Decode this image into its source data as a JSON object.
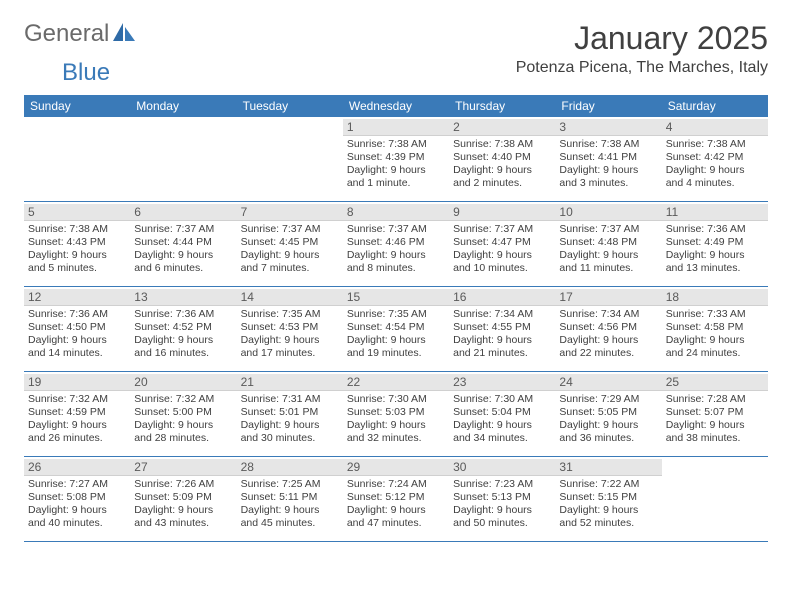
{
  "logo": {
    "part1": "General",
    "part2": "Blue"
  },
  "title": "January 2025",
  "location": "Potenza Picena, The Marches, Italy",
  "colors": {
    "header_bg": "#3a7ab8",
    "header_text": "#ffffff",
    "daynum_bg": "#e6e6e6",
    "daynum_text": "#5a5a5a",
    "body_text": "#404040",
    "row_border": "#3a7ab8",
    "logo_gray": "#6a6a6a",
    "logo_blue": "#3a7ab8",
    "background": "#ffffff"
  },
  "fonts": {
    "month_title_pt": 32,
    "location_pt": 16,
    "dow_pt": 12,
    "daynum_pt": 12,
    "daytext_pt": 10.5
  },
  "days_of_week": [
    "Sunday",
    "Monday",
    "Tuesday",
    "Wednesday",
    "Thursday",
    "Friday",
    "Saturday"
  ],
  "weeks": [
    [
      {
        "n": "",
        "sr": "",
        "ss": "",
        "d1": "",
        "d2": ""
      },
      {
        "n": "",
        "sr": "",
        "ss": "",
        "d1": "",
        "d2": ""
      },
      {
        "n": "",
        "sr": "",
        "ss": "",
        "d1": "",
        "d2": ""
      },
      {
        "n": "1",
        "sr": "Sunrise: 7:38 AM",
        "ss": "Sunset: 4:39 PM",
        "d1": "Daylight: 9 hours",
        "d2": "and 1 minute."
      },
      {
        "n": "2",
        "sr": "Sunrise: 7:38 AM",
        "ss": "Sunset: 4:40 PM",
        "d1": "Daylight: 9 hours",
        "d2": "and 2 minutes."
      },
      {
        "n": "3",
        "sr": "Sunrise: 7:38 AM",
        "ss": "Sunset: 4:41 PM",
        "d1": "Daylight: 9 hours",
        "d2": "and 3 minutes."
      },
      {
        "n": "4",
        "sr": "Sunrise: 7:38 AM",
        "ss": "Sunset: 4:42 PM",
        "d1": "Daylight: 9 hours",
        "d2": "and 4 minutes."
      }
    ],
    [
      {
        "n": "5",
        "sr": "Sunrise: 7:38 AM",
        "ss": "Sunset: 4:43 PM",
        "d1": "Daylight: 9 hours",
        "d2": "and 5 minutes."
      },
      {
        "n": "6",
        "sr": "Sunrise: 7:37 AM",
        "ss": "Sunset: 4:44 PM",
        "d1": "Daylight: 9 hours",
        "d2": "and 6 minutes."
      },
      {
        "n": "7",
        "sr": "Sunrise: 7:37 AM",
        "ss": "Sunset: 4:45 PM",
        "d1": "Daylight: 9 hours",
        "d2": "and 7 minutes."
      },
      {
        "n": "8",
        "sr": "Sunrise: 7:37 AM",
        "ss": "Sunset: 4:46 PM",
        "d1": "Daylight: 9 hours",
        "d2": "and 8 minutes."
      },
      {
        "n": "9",
        "sr": "Sunrise: 7:37 AM",
        "ss": "Sunset: 4:47 PM",
        "d1": "Daylight: 9 hours",
        "d2": "and 10 minutes."
      },
      {
        "n": "10",
        "sr": "Sunrise: 7:37 AM",
        "ss": "Sunset: 4:48 PM",
        "d1": "Daylight: 9 hours",
        "d2": "and 11 minutes."
      },
      {
        "n": "11",
        "sr": "Sunrise: 7:36 AM",
        "ss": "Sunset: 4:49 PM",
        "d1": "Daylight: 9 hours",
        "d2": "and 13 minutes."
      }
    ],
    [
      {
        "n": "12",
        "sr": "Sunrise: 7:36 AM",
        "ss": "Sunset: 4:50 PM",
        "d1": "Daylight: 9 hours",
        "d2": "and 14 minutes."
      },
      {
        "n": "13",
        "sr": "Sunrise: 7:36 AM",
        "ss": "Sunset: 4:52 PM",
        "d1": "Daylight: 9 hours",
        "d2": "and 16 minutes."
      },
      {
        "n": "14",
        "sr": "Sunrise: 7:35 AM",
        "ss": "Sunset: 4:53 PM",
        "d1": "Daylight: 9 hours",
        "d2": "and 17 minutes."
      },
      {
        "n": "15",
        "sr": "Sunrise: 7:35 AM",
        "ss": "Sunset: 4:54 PM",
        "d1": "Daylight: 9 hours",
        "d2": "and 19 minutes."
      },
      {
        "n": "16",
        "sr": "Sunrise: 7:34 AM",
        "ss": "Sunset: 4:55 PM",
        "d1": "Daylight: 9 hours",
        "d2": "and 21 minutes."
      },
      {
        "n": "17",
        "sr": "Sunrise: 7:34 AM",
        "ss": "Sunset: 4:56 PM",
        "d1": "Daylight: 9 hours",
        "d2": "and 22 minutes."
      },
      {
        "n": "18",
        "sr": "Sunrise: 7:33 AM",
        "ss": "Sunset: 4:58 PM",
        "d1": "Daylight: 9 hours",
        "d2": "and 24 minutes."
      }
    ],
    [
      {
        "n": "19",
        "sr": "Sunrise: 7:32 AM",
        "ss": "Sunset: 4:59 PM",
        "d1": "Daylight: 9 hours",
        "d2": "and 26 minutes."
      },
      {
        "n": "20",
        "sr": "Sunrise: 7:32 AM",
        "ss": "Sunset: 5:00 PM",
        "d1": "Daylight: 9 hours",
        "d2": "and 28 minutes."
      },
      {
        "n": "21",
        "sr": "Sunrise: 7:31 AM",
        "ss": "Sunset: 5:01 PM",
        "d1": "Daylight: 9 hours",
        "d2": "and 30 minutes."
      },
      {
        "n": "22",
        "sr": "Sunrise: 7:30 AM",
        "ss": "Sunset: 5:03 PM",
        "d1": "Daylight: 9 hours",
        "d2": "and 32 minutes."
      },
      {
        "n": "23",
        "sr": "Sunrise: 7:30 AM",
        "ss": "Sunset: 5:04 PM",
        "d1": "Daylight: 9 hours",
        "d2": "and 34 minutes."
      },
      {
        "n": "24",
        "sr": "Sunrise: 7:29 AM",
        "ss": "Sunset: 5:05 PM",
        "d1": "Daylight: 9 hours",
        "d2": "and 36 minutes."
      },
      {
        "n": "25",
        "sr": "Sunrise: 7:28 AM",
        "ss": "Sunset: 5:07 PM",
        "d1": "Daylight: 9 hours",
        "d2": "and 38 minutes."
      }
    ],
    [
      {
        "n": "26",
        "sr": "Sunrise: 7:27 AM",
        "ss": "Sunset: 5:08 PM",
        "d1": "Daylight: 9 hours",
        "d2": "and 40 minutes."
      },
      {
        "n": "27",
        "sr": "Sunrise: 7:26 AM",
        "ss": "Sunset: 5:09 PM",
        "d1": "Daylight: 9 hours",
        "d2": "and 43 minutes."
      },
      {
        "n": "28",
        "sr": "Sunrise: 7:25 AM",
        "ss": "Sunset: 5:11 PM",
        "d1": "Daylight: 9 hours",
        "d2": "and 45 minutes."
      },
      {
        "n": "29",
        "sr": "Sunrise: 7:24 AM",
        "ss": "Sunset: 5:12 PM",
        "d1": "Daylight: 9 hours",
        "d2": "and 47 minutes."
      },
      {
        "n": "30",
        "sr": "Sunrise: 7:23 AM",
        "ss": "Sunset: 5:13 PM",
        "d1": "Daylight: 9 hours",
        "d2": "and 50 minutes."
      },
      {
        "n": "31",
        "sr": "Sunrise: 7:22 AM",
        "ss": "Sunset: 5:15 PM",
        "d1": "Daylight: 9 hours",
        "d2": "and 52 minutes."
      },
      {
        "n": "",
        "sr": "",
        "ss": "",
        "d1": "",
        "d2": ""
      }
    ]
  ]
}
